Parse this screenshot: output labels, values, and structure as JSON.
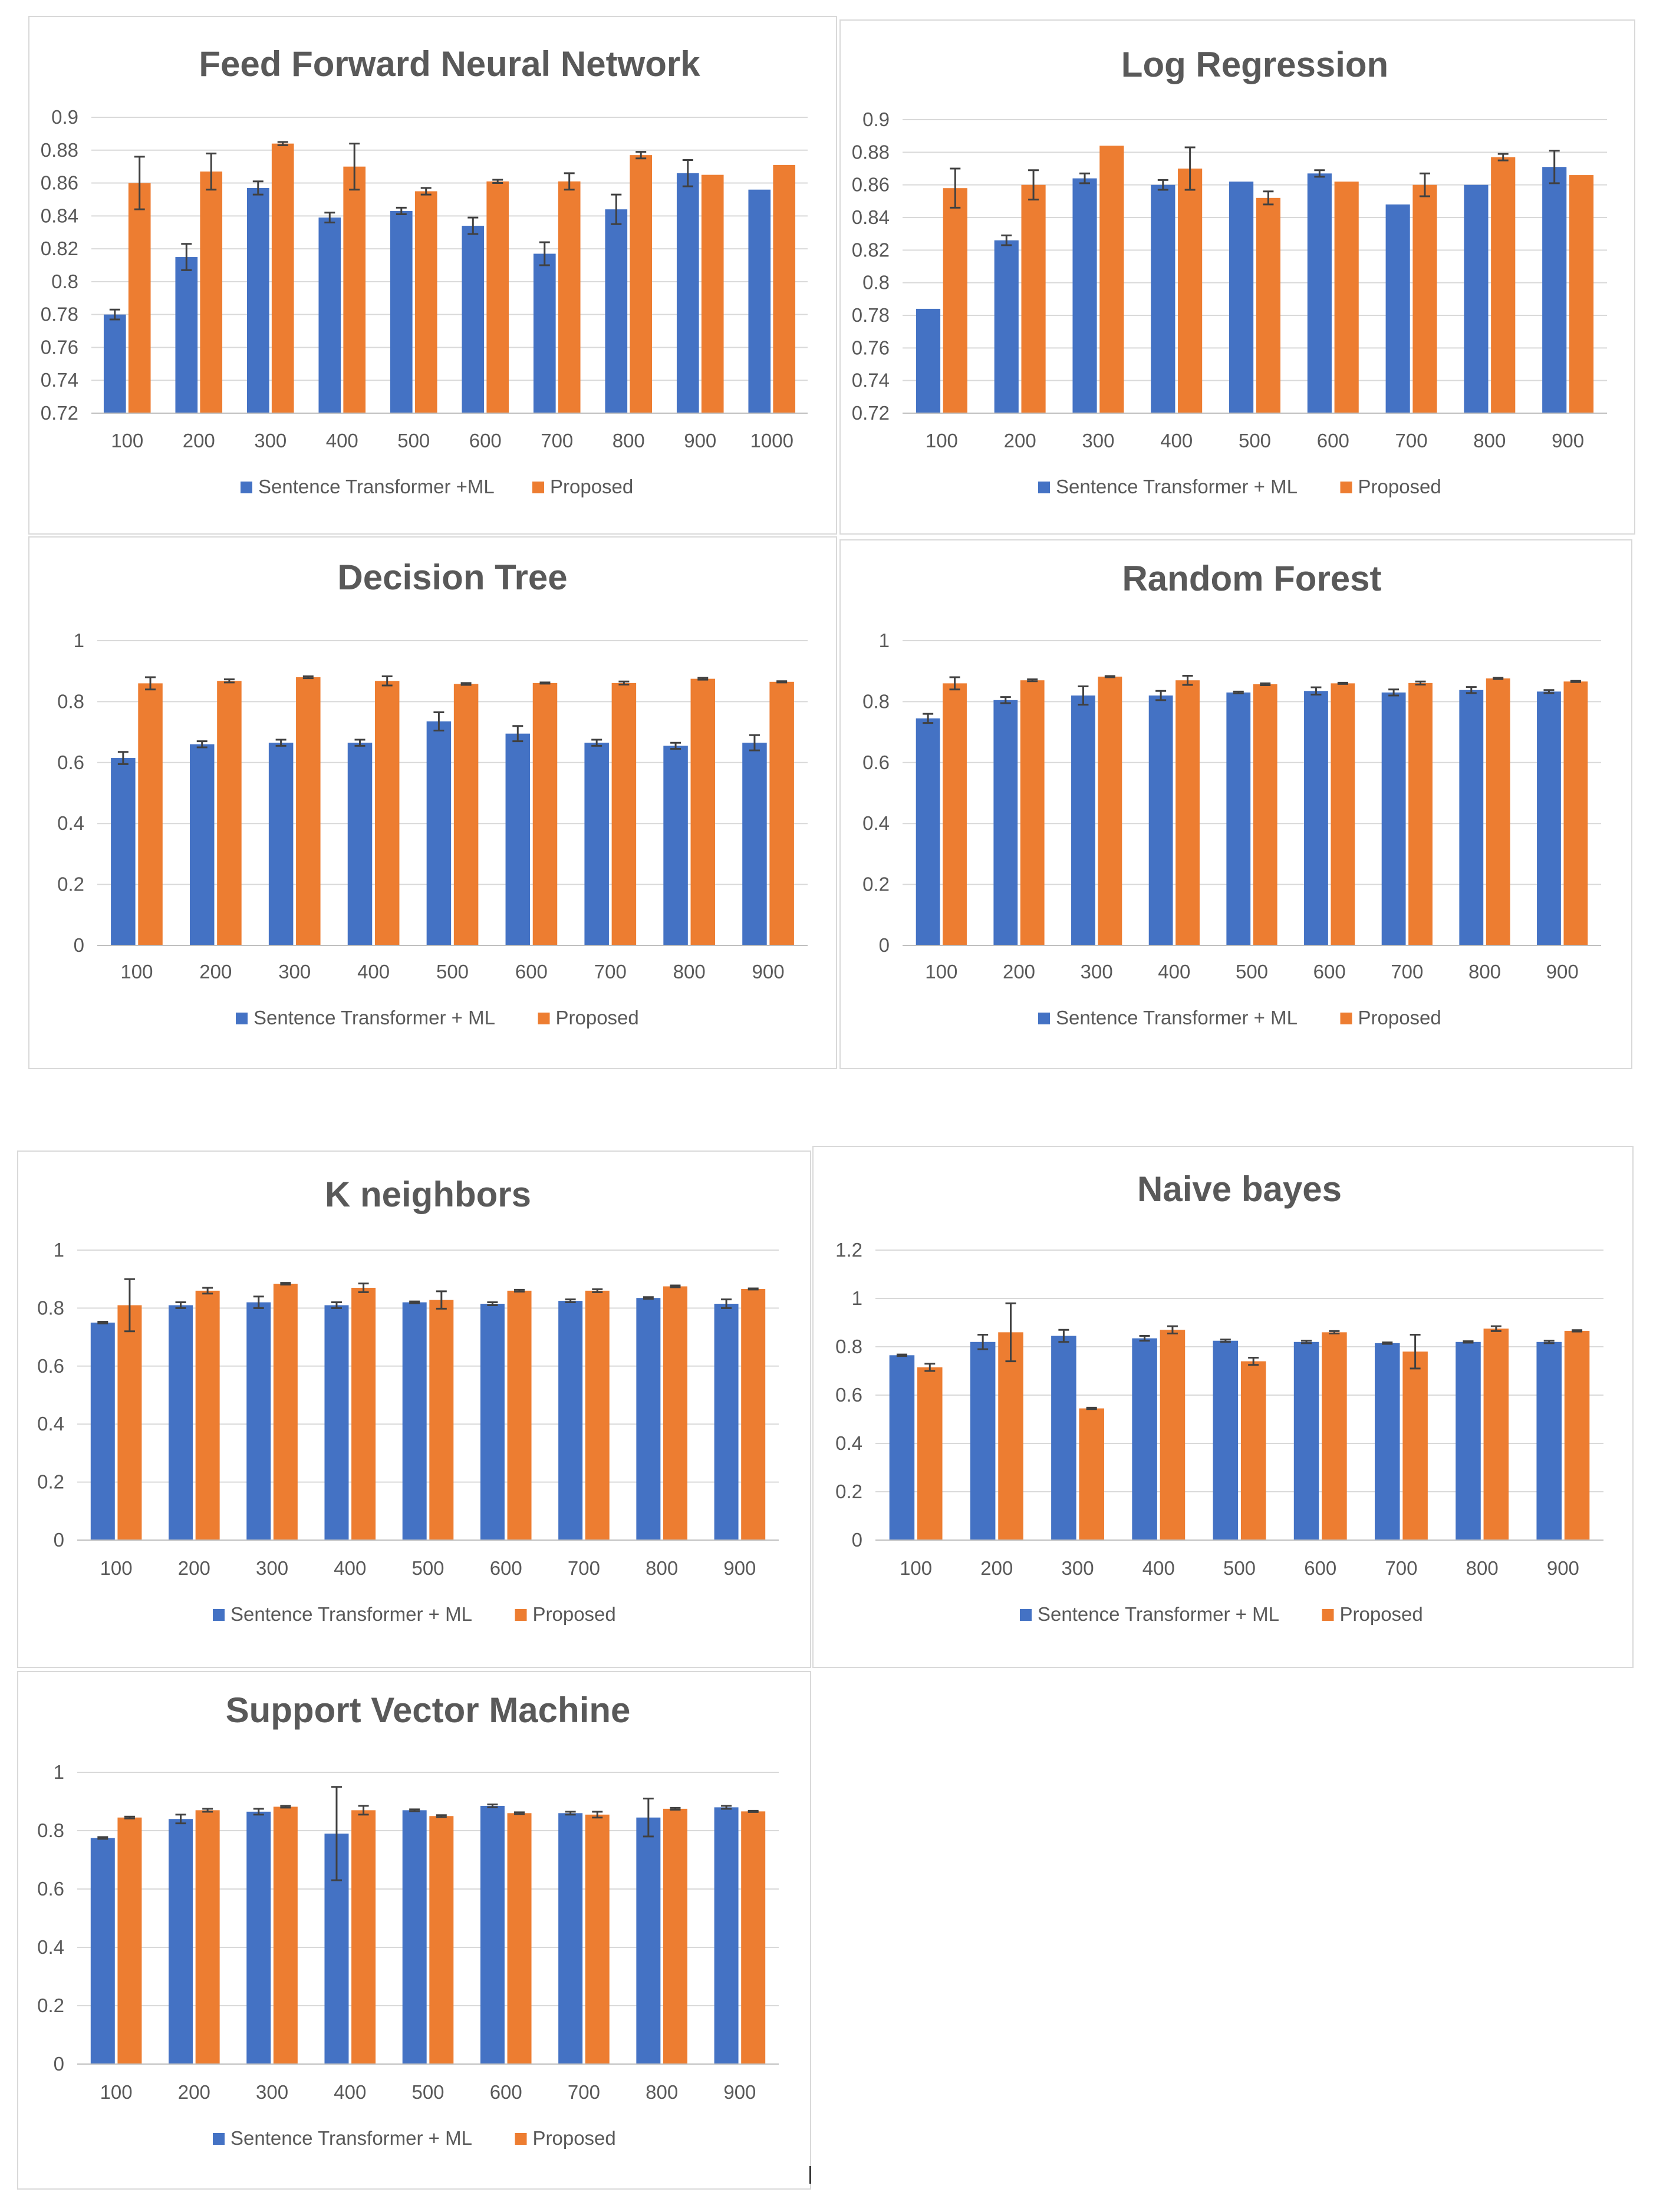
{
  "colors": {
    "baseline": "#4472C4",
    "proposed": "#ED7D31",
    "grid": "#d9d9d9",
    "text": "#595959"
  },
  "legend": {
    "baseline_default": "Sentence Transformer + ML",
    "proposed": "Proposed"
  },
  "chart_data": [
    {
      "type": "bar",
      "title": "Feed Forward Neural Network",
      "categories": [
        "100",
        "200",
        "300",
        "400",
        "500",
        "600",
        "700",
        "800",
        "900",
        "1000"
      ],
      "ylim": [
        0.72,
        0.9
      ],
      "yticks": [
        0.72,
        0.74,
        0.76,
        0.78,
        0.8,
        0.82,
        0.84,
        0.86,
        0.88,
        0.9
      ],
      "ytick_labels": [
        "0.72",
        "0.74",
        "0.76",
        "0.78",
        "0.8",
        "0.82",
        "0.84",
        "0.86",
        "0.88",
        "0.9"
      ],
      "legend": [
        "Sentence Transformer +ML",
        "Proposed"
      ],
      "series": [
        {
          "name": "Sentence Transformer +ML",
          "values": [
            0.78,
            0.815,
            0.857,
            0.839,
            0.843,
            0.834,
            0.817,
            0.844,
            0.866,
            0.856
          ],
          "errors": [
            0.003,
            0.008,
            0.004,
            0.003,
            0.002,
            0.005,
            0.007,
            0.009,
            0.008,
            0
          ]
        },
        {
          "name": "Proposed",
          "values": [
            0.86,
            0.867,
            0.884,
            0.87,
            0.855,
            0.861,
            0.861,
            0.877,
            0.865,
            0.871
          ],
          "errors": [
            0.016,
            0.011,
            0.001,
            0.014,
            0.002,
            0.001,
            0.005,
            0.002,
            0,
            0
          ]
        }
      ]
    },
    {
      "type": "bar",
      "title": "Log Regression",
      "categories": [
        "100",
        "200",
        "300",
        "400",
        "500",
        "600",
        "700",
        "800",
        "900"
      ],
      "ylim": [
        0.72,
        0.9
      ],
      "yticks": [
        0.72,
        0.74,
        0.76,
        0.78,
        0.8,
        0.82,
        0.84,
        0.86,
        0.88,
        0.9
      ],
      "ytick_labels": [
        "0.72",
        "0.74",
        "0.76",
        "0.78",
        "0.8",
        "0.82",
        "0.84",
        "0.86",
        "0.88",
        "0.9"
      ],
      "legend": [
        "Sentence Transformer + ML",
        "Proposed"
      ],
      "series": [
        {
          "name": "Sentence Transformer + ML",
          "values": [
            0.784,
            0.826,
            0.864,
            0.86,
            0.862,
            0.867,
            0.848,
            0.86,
            0.871
          ],
          "errors": [
            0,
            0.003,
            0.003,
            0.003,
            0,
            0.002,
            0,
            0,
            0.01
          ]
        },
        {
          "name": "Proposed",
          "values": [
            0.858,
            0.86,
            0.884,
            0.87,
            0.852,
            0.862,
            0.86,
            0.877,
            0.866
          ],
          "errors": [
            0.012,
            0.009,
            0,
            0.013,
            0.004,
            0,
            0.007,
            0.002,
            0
          ]
        }
      ]
    },
    {
      "type": "bar",
      "title": "Decision Tree",
      "categories": [
        "100",
        "200",
        "300",
        "400",
        "500",
        "600",
        "700",
        "800",
        "900"
      ],
      "ylim": [
        0,
        1
      ],
      "yticks": [
        0,
        0.2,
        0.4,
        0.6,
        0.8,
        1
      ],
      "ytick_labels": [
        "0",
        "0.2",
        "0.4",
        "0.6",
        "0.8",
        "1"
      ],
      "legend": [
        "Sentence Transformer + ML",
        "Proposed"
      ],
      "series": [
        {
          "name": "Sentence Transformer + ML",
          "values": [
            0.615,
            0.66,
            0.665,
            0.665,
            0.735,
            0.695,
            0.665,
            0.655,
            0.665
          ],
          "errors": [
            0.02,
            0.01,
            0.01,
            0.01,
            0.03,
            0.025,
            0.01,
            0.01,
            0.025
          ]
        },
        {
          "name": "Proposed",
          "values": [
            0.86,
            0.868,
            0.88,
            0.868,
            0.858,
            0.861,
            0.861,
            0.875,
            0.865
          ],
          "errors": [
            0.02,
            0.005,
            0.003,
            0.015,
            0.003,
            0.002,
            0.005,
            0.003,
            0.002
          ]
        }
      ]
    },
    {
      "type": "bar",
      "title": "Random Forest",
      "categories": [
        "100",
        "200",
        "300",
        "400",
        "500",
        "600",
        "700",
        "800",
        "900"
      ],
      "ylim": [
        0,
        1
      ],
      "yticks": [
        0,
        0.2,
        0.4,
        0.6,
        0.8,
        1
      ],
      "ytick_labels": [
        "0",
        "0.2",
        "0.4",
        "0.6",
        "0.8",
        "1"
      ],
      "legend": [
        "Sentence Transformer + ML",
        "Proposed"
      ],
      "series": [
        {
          "name": "Sentence Transformer + ML",
          "values": [
            0.745,
            0.805,
            0.82,
            0.82,
            0.83,
            0.835,
            0.83,
            0.838,
            0.833
          ],
          "errors": [
            0.015,
            0.01,
            0.03,
            0.015,
            0.003,
            0.012,
            0.01,
            0.01,
            0.005
          ]
        },
        {
          "name": "Proposed",
          "values": [
            0.86,
            0.87,
            0.882,
            0.87,
            0.857,
            0.86,
            0.861,
            0.876,
            0.866
          ],
          "errors": [
            0.02,
            0.003,
            0.002,
            0.015,
            0.003,
            0.002,
            0.005,
            0.002,
            0.002
          ]
        }
      ]
    },
    {
      "type": "bar",
      "title": "K neighbors",
      "categories": [
        "100",
        "200",
        "300",
        "400",
        "500",
        "600",
        "700",
        "800",
        "900"
      ],
      "ylim": [
        0,
        1
      ],
      "yticks": [
        0,
        0.2,
        0.4,
        0.6,
        0.8,
        1
      ],
      "ytick_labels": [
        "0",
        "0.2",
        "0.4",
        "0.6",
        "0.8",
        "1"
      ],
      "legend": [
        "Sentence Transformer + ML",
        "Proposed"
      ],
      "series": [
        {
          "name": "Sentence Transformer + ML",
          "values": [
            0.75,
            0.81,
            0.82,
            0.81,
            0.82,
            0.815,
            0.825,
            0.835,
            0.815
          ],
          "errors": [
            0.003,
            0.01,
            0.02,
            0.01,
            0.003,
            0.005,
            0.005,
            0.003,
            0.015
          ]
        },
        {
          "name": "Proposed",
          "values": [
            0.81,
            0.86,
            0.884,
            0.87,
            0.828,
            0.86,
            0.86,
            0.875,
            0.866
          ],
          "errors": [
            0.09,
            0.01,
            0.003,
            0.015,
            0.03,
            0.003,
            0.005,
            0.003,
            0.002
          ]
        }
      ]
    },
    {
      "type": "bar",
      "title": "Naive bayes",
      "categories": [
        "100",
        "200",
        "300",
        "400",
        "500",
        "600",
        "700",
        "800",
        "900"
      ],
      "ylim": [
        0,
        1.2
      ],
      "yticks": [
        0,
        0.2,
        0.4,
        0.6,
        0.8,
        1,
        1.2
      ],
      "ytick_labels": [
        "0",
        "0.2",
        "0.4",
        "0.6",
        "0.8",
        "1",
        "1.2"
      ],
      "legend": [
        "Sentence Transformer + ML",
        "Proposed"
      ],
      "series": [
        {
          "name": "Sentence Transformer + ML",
          "values": [
            0.765,
            0.82,
            0.845,
            0.835,
            0.825,
            0.82,
            0.815,
            0.82,
            0.82
          ],
          "errors": [
            0.003,
            0.03,
            0.025,
            0.01,
            0.005,
            0.005,
            0.003,
            0.003,
            0.005
          ]
        },
        {
          "name": "Proposed",
          "values": [
            0.715,
            0.86,
            0.545,
            0.87,
            0.74,
            0.86,
            0.78,
            0.875,
            0.866
          ],
          "errors": [
            0.015,
            0.12,
            0.003,
            0.015,
            0.015,
            0.005,
            0.07,
            0.01,
            0.003
          ]
        }
      ]
    },
    {
      "type": "bar",
      "title": "Support Vector Machine",
      "categories": [
        "100",
        "200",
        "300",
        "400",
        "500",
        "600",
        "700",
        "800",
        "900"
      ],
      "ylim": [
        0,
        1
      ],
      "yticks": [
        0,
        0.2,
        0.4,
        0.6,
        0.8,
        1
      ],
      "ytick_labels": [
        "0",
        "0.2",
        "0.4",
        "0.6",
        "0.8",
        "1"
      ],
      "legend": [
        "Sentence Transformer + ML",
        "Proposed"
      ],
      "series": [
        {
          "name": "Sentence Transformer + ML",
          "values": [
            0.775,
            0.84,
            0.865,
            0.79,
            0.87,
            0.885,
            0.86,
            0.845,
            0.88
          ],
          "errors": [
            0.003,
            0.015,
            0.01,
            0.16,
            0.003,
            0.005,
            0.005,
            0.065,
            0.005
          ]
        },
        {
          "name": "Proposed",
          "values": [
            0.845,
            0.87,
            0.882,
            0.87,
            0.85,
            0.86,
            0.855,
            0.875,
            0.866
          ],
          "errors": [
            0.003,
            0.005,
            0.003,
            0.015,
            0.003,
            0.003,
            0.01,
            0.003,
            0.002
          ]
        }
      ]
    }
  ]
}
